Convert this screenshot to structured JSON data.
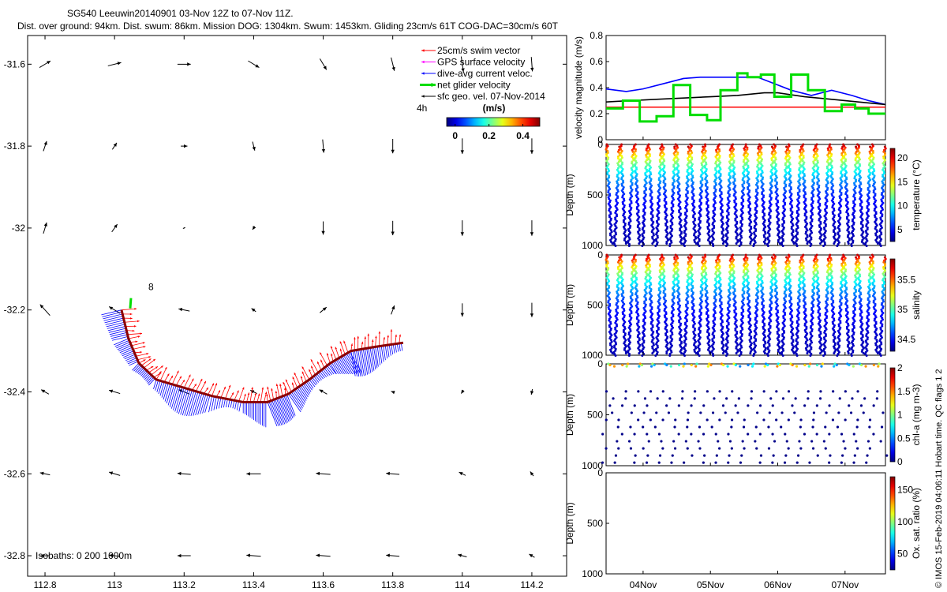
{
  "header": {
    "line1": "SG540 Leeuwin20140901 03-Nov 12Z to 07-Nov 11Z.",
    "line2": "Dist. over ground: 94km. Dist. swum: 86km. Mission DOG: 1304km. Swum: 1453km. Gliding 23cm/s 61T COG-DAC=30cm/s 60T"
  },
  "credit": "© IMOS 15-Feb-2019 04:06:11 Hobart time. QC flags 1  2",
  "colors": {
    "swim": "#ff0000",
    "gps": "#ff00ff",
    "dac": "#0000ff",
    "net": "#00dd00",
    "geo": "#000000"
  },
  "chart_data": [
    {
      "type": "map",
      "xlim": [
        112.75,
        114.3
      ],
      "ylim": [
        -32.85,
        -31.53
      ],
      "xticks": [
        "112.8",
        "113",
        "113.2",
        "113.4",
        "113.6",
        "113.8",
        "114",
        "114.2"
      ],
      "xtick_values": [
        112.8,
        113,
        113.2,
        113.4,
        113.6,
        113.8,
        114,
        114.2
      ],
      "yticks": [
        "-31.6",
        "-31.8",
        "-32",
        "-32.2",
        "-32.4",
        "-32.6",
        "-32.8"
      ],
      "ytick_values": [
        -31.6,
        -31.8,
        -32,
        -32.2,
        -32.4,
        -32.6,
        -32.8
      ],
      "legend": [
        {
          "label": "25cm/s swim vector",
          "color": "#ff0000"
        },
        {
          "label": "GPS surface velocity",
          "color": "#ff00ff"
        },
        {
          "label": "dive-avg current veloc.",
          "color": "#0000ff"
        },
        {
          "label": "net glider velocity",
          "color": "#00dd00"
        },
        {
          "label": "sfc geo. vel. 07-Nov-2014",
          "color": "#000000"
        }
      ],
      "colorbar": {
        "title": "(m/s)",
        "ticks": [
          "0",
          "0.2",
          "0.4"
        ],
        "tick_values": [
          0,
          0.2,
          0.4
        ],
        "range": [
          -0.05,
          0.5
        ]
      },
      "annotations": {
        "age": "4h",
        "marker": "8",
        "isobaths": "Isobaths: 0   200 1000m"
      },
      "track": [
        {
          "lon": 113.02,
          "lat": -32.2
        },
        {
          "lon": 113.04,
          "lat": -32.27
        },
        {
          "lon": 113.07,
          "lat": -32.33
        },
        {
          "lon": 113.12,
          "lat": -32.37
        },
        {
          "lon": 113.2,
          "lat": -32.39
        },
        {
          "lon": 113.28,
          "lat": -32.41
        },
        {
          "lon": 113.37,
          "lat": -32.425
        },
        {
          "lon": 113.44,
          "lat": -32.425
        },
        {
          "lon": 113.5,
          "lat": -32.405
        },
        {
          "lon": 113.56,
          "lat": -32.37
        },
        {
          "lon": 113.62,
          "lat": -32.33
        },
        {
          "lon": 113.68,
          "lat": -32.3
        },
        {
          "lon": 113.75,
          "lat": -32.29
        },
        {
          "lon": 113.83,
          "lat": -32.28
        }
      ],
      "geo_vectors": {
        "lons": [
          112.8,
          113,
          113.2,
          113.4,
          113.6,
          113.8,
          114,
          114.2
        ],
        "lats": [
          -31.6,
          -31.8,
          -32,
          -32.2,
          -32.4,
          -32.6,
          -32.8
        ],
        "u": [
          [
            0.1,
            0.12,
            0.12,
            0.1,
            0.06,
            0.03,
            0.02,
            0.01
          ],
          [
            0.03,
            0.04,
            0.06,
            0.02,
            0.01,
            0.0,
            0.0,
            0.0
          ],
          [
            0.03,
            0.05,
            0.02,
            -0.02,
            0.0,
            0.0,
            0.0,
            0.0
          ],
          [
            -0.09,
            -0.1,
            -0.1,
            -0.04,
            0.06,
            0.03,
            0.0,
            0.0
          ],
          [
            -0.07,
            -0.1,
            -0.1,
            -0.06,
            -0.07,
            -0.03,
            -0.02,
            -0.01
          ],
          [
            -0.09,
            -0.1,
            -0.12,
            -0.13,
            -0.13,
            -0.12,
            -0.06,
            -0.03
          ],
          [
            -0.08,
            -0.1,
            -0.12,
            -0.13,
            -0.13,
            -0.12,
            -0.08,
            -0.05
          ]
        ],
        "v": [
          [
            0.06,
            0.03,
            0.0,
            -0.06,
            -0.1,
            -0.12,
            -0.14,
            -0.13
          ],
          [
            0.09,
            0.06,
            0.0,
            -0.08,
            -0.12,
            -0.13,
            -0.14,
            -0.14
          ],
          [
            0.1,
            0.07,
            0.01,
            -0.03,
            -0.12,
            -0.13,
            -0.14,
            -0.14
          ],
          [
            0.1,
            0.06,
            0.02,
            0.03,
            0.05,
            0.08,
            -0.12,
            -0.13
          ],
          [
            0.04,
            0.03,
            0.04,
            0.03,
            0.04,
            0.01,
            -0.03,
            -0.05
          ],
          [
            0.02,
            0.03,
            0.01,
            0.0,
            0.01,
            0.01,
            0.03,
            0.04
          ],
          [
            0.0,
            0.01,
            0.0,
            0.01,
            0.01,
            0.01,
            0.02,
            0.03
          ]
        ]
      }
    },
    {
      "type": "line",
      "ylabel": "velocity magnitude (m/s)",
      "xlim": [
        3.45,
        7.6
      ],
      "ylim": [
        0,
        0.8
      ],
      "yticks": [
        "0",
        "0.2",
        "0.4",
        "0.6",
        "0.8"
      ],
      "ytick_values": [
        0,
        0.2,
        0.4,
        0.6,
        0.8
      ],
      "series": [
        {
          "color": "#ff0000",
          "x": [
            3.45,
            7.6
          ],
          "y": [
            0.25,
            0.25
          ]
        },
        {
          "color": "#0000ff",
          "x": [
            3.45,
            3.75,
            4.0,
            4.3,
            4.6,
            4.85,
            5.1,
            5.4,
            5.7,
            5.95,
            6.2,
            6.5,
            6.8,
            7.1,
            7.35,
            7.6
          ],
          "y": [
            0.39,
            0.37,
            0.39,
            0.43,
            0.47,
            0.48,
            0.48,
            0.48,
            0.48,
            0.43,
            0.38,
            0.34,
            0.38,
            0.34,
            0.3,
            0.27
          ]
        },
        {
          "color": "#000000",
          "x": [
            3.45,
            3.8,
            4.2,
            4.6,
            5.0,
            5.4,
            5.8,
            6.0,
            6.4,
            6.8,
            7.2,
            7.6
          ],
          "y": [
            0.29,
            0.3,
            0.31,
            0.32,
            0.33,
            0.34,
            0.36,
            0.36,
            0.33,
            0.31,
            0.29,
            0.27
          ]
        },
        {
          "color": "#00dd00",
          "x": [
            3.45,
            3.7,
            3.7,
            3.95,
            3.95,
            4.2,
            4.2,
            4.45,
            4.45,
            4.7,
            4.7,
            4.95,
            4.95,
            5.15,
            5.15,
            5.4,
            5.4,
            5.55,
            5.55,
            5.75,
            5.75,
            5.95,
            5.95,
            6.2,
            6.2,
            6.45,
            6.45,
            6.7,
            6.7,
            6.95,
            6.95,
            7.15,
            7.15,
            7.35,
            7.35,
            7.6
          ],
          "y": [
            0.24,
            0.24,
            0.3,
            0.3,
            0.14,
            0.14,
            0.18,
            0.18,
            0.42,
            0.42,
            0.19,
            0.19,
            0.15,
            0.15,
            0.38,
            0.38,
            0.51,
            0.51,
            0.48,
            0.48,
            0.5,
            0.5,
            0.33,
            0.33,
            0.5,
            0.5,
            0.38,
            0.38,
            0.22,
            0.22,
            0.27,
            0.27,
            0.24,
            0.24,
            0.2,
            0.2
          ]
        }
      ]
    },
    {
      "type": "scatter",
      "variable": "temperature",
      "ylabel": "Depth (m)",
      "clabel": "temperature (°C)",
      "ylim": [
        1000,
        0
      ],
      "yticks": [
        "0",
        "500",
        "1000"
      ],
      "ytick_values": [
        0,
        500,
        1000
      ],
      "ctick_labels": [
        "5",
        "10",
        "15",
        "20"
      ],
      "ctick_values": [
        5,
        10,
        15,
        20
      ],
      "crange": [
        2.5,
        22
      ],
      "surface": 21,
      "deep": 3
    },
    {
      "type": "scatter",
      "variable": "salinity",
      "ylabel": "Depth (m)",
      "clabel": "salinity",
      "ylim": [
        1000,
        0
      ],
      "yticks": [
        "0",
        "500",
        "1000"
      ],
      "ytick_values": [
        0,
        500,
        1000
      ],
      "ctick_labels": [
        "34.5",
        "35",
        "35.5"
      ],
      "ctick_values": [
        34.5,
        35,
        35.5
      ],
      "crange": [
        34.3,
        35.85
      ],
      "surface": 35.75,
      "deep": 34.35
    },
    {
      "type": "scatter",
      "variable": "chl-a",
      "ylabel": "Depth (m)",
      "clabel": "chl-a (mg m-3)",
      "ylim": [
        1000,
        0
      ],
      "yticks": [
        "0",
        "500",
        "1000"
      ],
      "ytick_values": [
        0,
        500,
        1000
      ],
      "ctick_labels": [
        "0",
        "0.5",
        "1",
        "1.5",
        "2"
      ],
      "ctick_values": [
        0,
        0.5,
        1,
        1.5,
        2
      ],
      "crange": [
        0,
        2
      ]
    },
    {
      "type": "scatter",
      "variable": "oxygen",
      "ylabel": "Depth (m)",
      "clabel": "Ox. sat. ratio (%)",
      "ylim": [
        1000,
        0
      ],
      "yticks": [
        "0",
        "500",
        "1000"
      ],
      "ytick_values": [
        0,
        500,
        1000
      ],
      "ctick_labels": [
        "50",
        "100",
        "150"
      ],
      "ctick_values": [
        50,
        100,
        150
      ],
      "crange": [
        25,
        170
      ],
      "x_tick_labels": [
        "04Nov",
        "05Nov",
        "06Nov",
        "07Nov"
      ],
      "x_tick_values": [
        4,
        5,
        6,
        7
      ]
    }
  ],
  "dives": {
    "count": 20,
    "xlim": [
      3.45,
      7.6
    ]
  }
}
